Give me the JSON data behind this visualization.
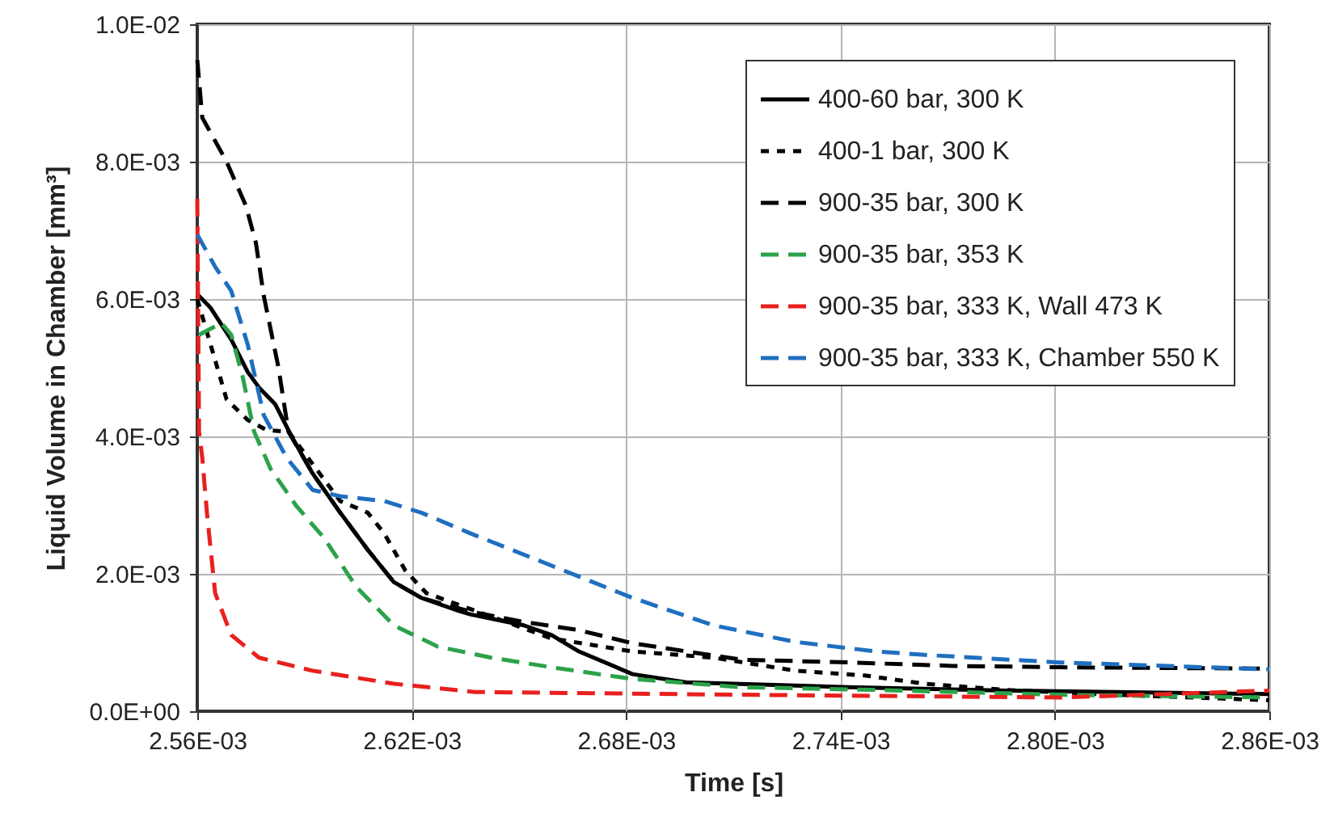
{
  "chart_data": {
    "type": "line",
    "xlabel": "Time [s]",
    "ylabel": "Liquid Volume in Chamber [mm³]",
    "xlim": [
      0.00256,
      0.00286
    ],
    "ylim": [
      0,
      0.01
    ],
    "xticks": [
      {
        "value": 0.00256,
        "label": "2.56E-03"
      },
      {
        "value": 0.00262,
        "label": "2.62E-03"
      },
      {
        "value": 0.00268,
        "label": "2.68E-03"
      },
      {
        "value": 0.00274,
        "label": "2.74E-03"
      },
      {
        "value": 0.0028,
        "label": "2.80E-03"
      },
      {
        "value": 0.00286,
        "label": "2.86E-03"
      }
    ],
    "yticks": [
      {
        "value": 0,
        "label": "0.0E+00"
      },
      {
        "value": 0.002,
        "label": "2.0E-03"
      },
      {
        "value": 0.004,
        "label": "4.0E-03"
      },
      {
        "value": 0.006,
        "label": "6.0E-03"
      },
      {
        "value": 0.008,
        "label": "8.0E-03"
      },
      {
        "value": 0.01,
        "label": "1.0E-02"
      }
    ],
    "grid": true,
    "legend": "top right",
    "marker": "none",
    "series": [
      {
        "name": "400-60 bar, 300 K",
        "color": "#000000",
        "line_style": "solid",
        "x": [
          0.00256,
          0.0025636,
          0.0025695,
          0.0025741,
          0.0025773,
          0.0025818,
          0.0025864,
          0.0025923,
          0.0026,
          0.0026077,
          0.002615,
          0.0026227,
          0.0026332,
          0.0026364,
          0.0026514,
          0.0026591,
          0.0026668,
          0.0026818,
          0.0026968,
          0.0027423,
          0.0027864,
          0.00286
        ],
        "values": [
          0.00607,
          0.00588,
          0.00541,
          0.00494,
          0.00471,
          0.00447,
          0.004,
          0.00346,
          0.00289,
          0.00235,
          0.00188,
          0.00165,
          0.00146,
          0.00141,
          0.00125,
          0.00111,
          0.00087,
          0.00054,
          0.00042,
          0.00035,
          0.0003,
          0.00025
        ]
      },
      {
        "name": "400-1 bar, 300 K",
        "color": "#000000",
        "line_style": "dotted",
        "x": [
          0.00256,
          0.0025682,
          0.0025741,
          0.0025795,
          0.0025855,
          0.0026,
          0.0026077,
          0.0026123,
          0.0026182,
          0.0026241,
          0.0026591,
          0.0026818,
          0.0027045,
          0.0027273,
          0.0027468,
          0.0027636,
          0.0027864,
          0.0028168,
          0.00286
        ],
        "values": [
          0.006,
          0.00454,
          0.00424,
          0.00409,
          0.00407,
          0.00306,
          0.00289,
          0.00259,
          0.00205,
          0.00172,
          0.00106,
          0.00087,
          0.00078,
          0.00059,
          0.00052,
          0.0004,
          0.00031,
          0.00024,
          0.00016
        ]
      },
      {
        "name": "900-35 bar, 300 K",
        "color": "#000000",
        "line_style": "dashed",
        "x": [
          0.00256,
          0.0025614,
          0.0025682,
          0.0025736,
          0.0025764,
          0.0025786,
          0.0025827,
          0.0025855,
          0.0025923,
          0.0026,
          0.0026077,
          0.002615,
          0.0026227,
          0.0026364,
          0.0026514,
          0.0026668,
          0.0026818,
          0.0027123,
          0.0027423,
          0.0027714,
          0.0028014,
          0.00286
        ],
        "values": [
          0.00948,
          0.00864,
          0.008,
          0.00736,
          0.00682,
          0.00605,
          0.00501,
          0.00407,
          0.00346,
          0.00289,
          0.00235,
          0.00188,
          0.00165,
          0.00145,
          0.0013,
          0.00118,
          0.00099,
          0.00075,
          0.00071,
          0.00066,
          0.00064,
          0.00062
        ]
      },
      {
        "name": "900-35 bar, 353 K",
        "color": "#2ca24a",
        "line_style": "dashed",
        "x": [
          0.0025605,
          0.0025668,
          0.0025695,
          0.0025727,
          0.0025759,
          0.0025805,
          0.0025877,
          0.0025955,
          0.0026045,
          0.002615,
          0.0026273,
          0.0026423,
          0.0026591,
          0.0026818,
          0.0027123,
          0.00275,
          0.0028014,
          0.00286
        ],
        "values": [
          0.00548,
          0.00565,
          0.00548,
          0.00487,
          0.00407,
          0.00353,
          0.00299,
          0.00252,
          0.00181,
          0.00125,
          0.00094,
          0.00078,
          0.00064,
          0.00047,
          0.00035,
          0.00031,
          0.00024,
          0.0002
        ]
      },
      {
        "name": "900-35 bar, 333 K, Wall 473 K",
        "color": "#e8201e",
        "line_style": "dashed",
        "x": [
          0.00256,
          0.0025605,
          0.0025614,
          0.0025627,
          0.002565,
          0.0025695,
          0.0025773,
          0.0025923,
          0.002615,
          0.0026377,
          0.0027123,
          0.0028014,
          0.00286
        ],
        "values": [
          0.00746,
          0.00407,
          0.00369,
          0.00289,
          0.00172,
          0.00111,
          0.00078,
          0.00059,
          0.0004,
          0.00028,
          0.00024,
          0.0002,
          0.0003
        ]
      },
      {
        "name": "900-35 bar, 333 K, Chamber 550 K",
        "color": "#1f6fc0",
        "line_style": "dashed",
        "x": [
          0.00256,
          0.002565,
          0.0025695,
          0.0025741,
          0.0025786,
          0.002585,
          0.0025923,
          0.0026,
          0.0026123,
          0.0026227,
          0.0026364,
          0.0026591,
          0.0026818,
          0.0027045,
          0.0027273,
          0.00275,
          0.0027636,
          0.0028014,
          0.00286
        ],
        "values": [
          0.00694,
          0.00647,
          0.00612,
          0.00534,
          0.00431,
          0.00369,
          0.00322,
          0.00313,
          0.00306,
          0.00289,
          0.00259,
          0.00212,
          0.00165,
          0.00125,
          0.00101,
          0.00087,
          0.00082,
          0.00071,
          0.00061
        ]
      }
    ]
  }
}
